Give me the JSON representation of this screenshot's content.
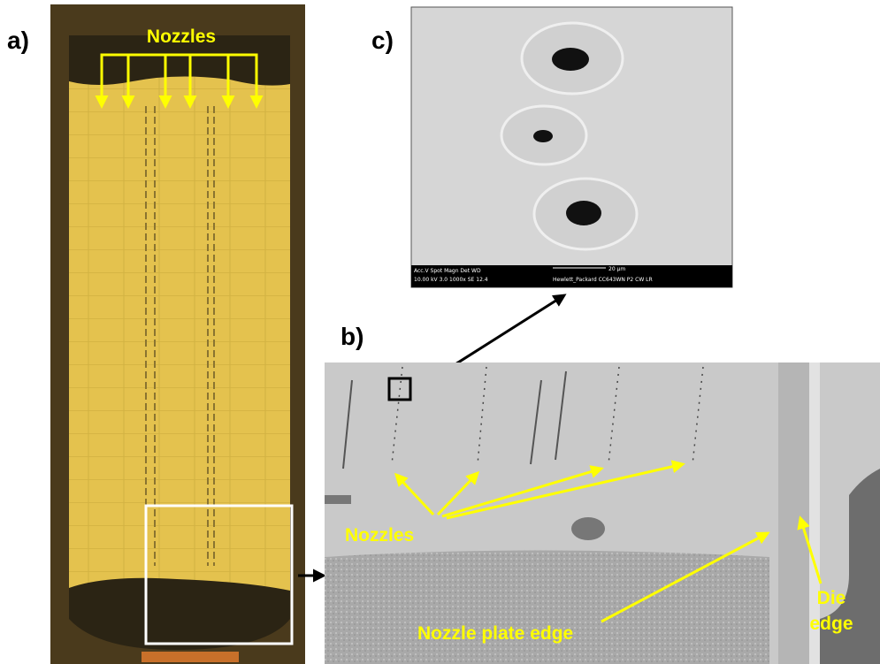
{
  "panels": {
    "a": {
      "label": "a)",
      "annotation": "Nozzles"
    },
    "b": {
      "label": "b)",
      "annotations": {
        "nozzles": "Nozzles",
        "nozzle_plate_edge": "Nozzle plate edge",
        "die_edge": [
          "Die",
          "edge"
        ]
      }
    },
    "c": {
      "label": "c)",
      "info_bar": {
        "line1": "Acc.V   Spot  Magn   Det  WD",
        "line2": "10.00 kV  3.0   1000x  SE  12.4",
        "scale": "20 µm",
        "instrument": "Hewlett_Packard CC643WN P2 CW LR"
      }
    }
  }
}
